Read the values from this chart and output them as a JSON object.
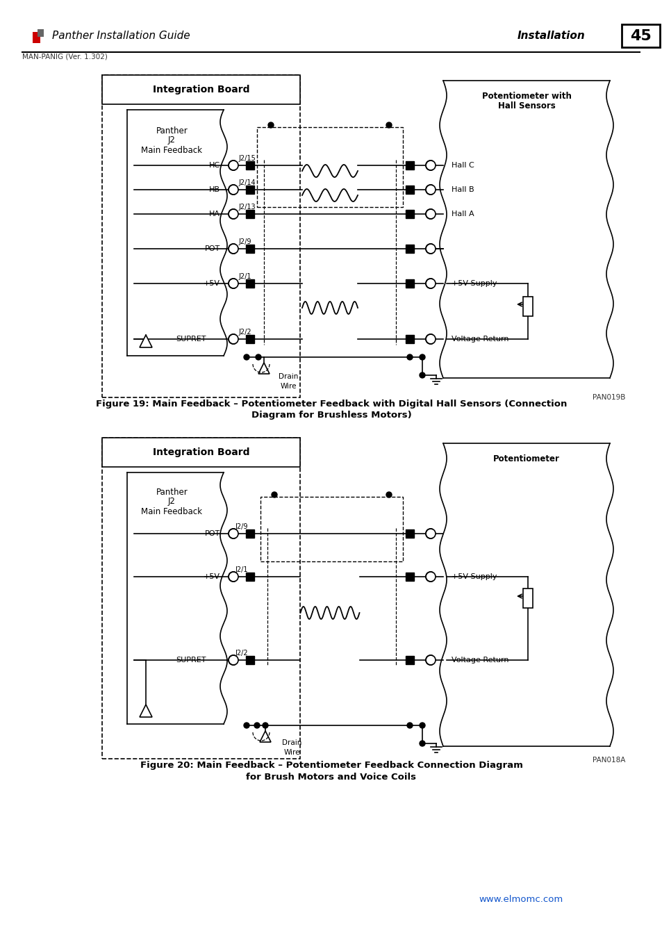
{
  "page_title": "Panther Installation Guide",
  "page_title_right": "Installation",
  "page_number": "45",
  "version": "MAN-PANIG (Ver. 1.302)",
  "fig19_caption_line1": "Figure 19: Main Feedback – Potentiometer Feedback with Digital Hall Sensors (Connection",
  "fig19_caption_line2": "Diagram for Brushless Motors)",
  "fig20_caption_line1": "Figure 20: Main Feedback – Potentiometer Feedback Connection Diagram",
  "fig20_caption_line2": "for Brush Motors and Voice Coils",
  "fig19_pan_label": "PAN019B",
  "fig20_pan_label": "PAN018A",
  "website": "www.elmomc.com",
  "bg_color": "#ffffff",
  "link_color": "#1155cc"
}
